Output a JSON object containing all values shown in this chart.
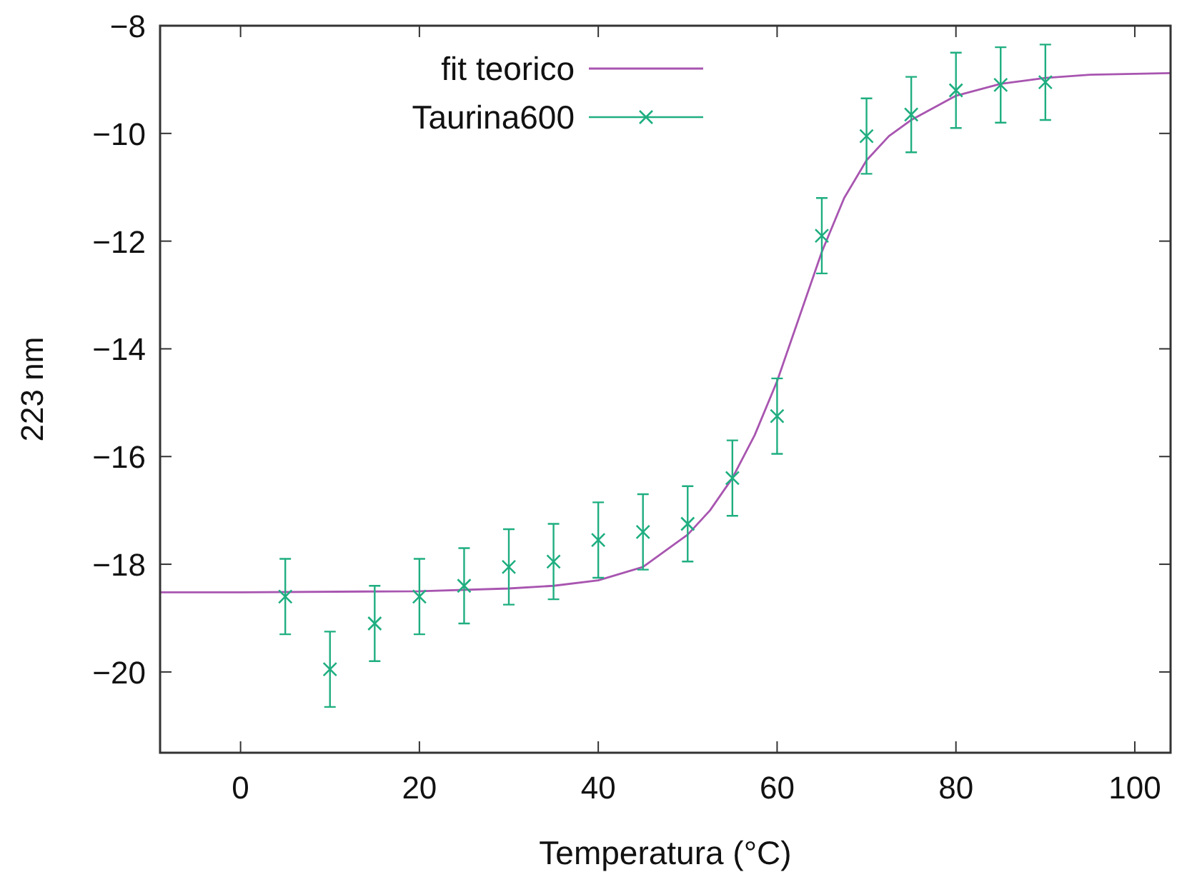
{
  "chart_data": {
    "type": "line",
    "xlabel": "Temperatura (°C)",
    "ylabel": "223 nm",
    "xlim": [
      -9,
      104
    ],
    "ylim": [
      -21.5,
      -8
    ],
    "xticks": [
      0,
      20,
      40,
      60,
      80,
      100
    ],
    "yticks": [
      -20,
      -18,
      -16,
      -14,
      -12,
      -10,
      -8
    ],
    "grid": false,
    "legend": "top left",
    "series": [
      {
        "name": "fit teorico",
        "type": "line",
        "color": "#a855b0",
        "marker": "none",
        "line_style": "solid",
        "x": [
          -9,
          0,
          20,
          30,
          35,
          40,
          45,
          50,
          52.5,
          55,
          57.5,
          60,
          62.5,
          65,
          67.5,
          70,
          72.5,
          75,
          80,
          85,
          90,
          95,
          104
        ],
        "values": [
          -18.52,
          -18.52,
          -18.5,
          -18.45,
          -18.4,
          -18.3,
          -18.05,
          -17.45,
          -17.0,
          -16.4,
          -15.6,
          -14.6,
          -13.4,
          -12.2,
          -11.2,
          -10.5,
          -10.05,
          -9.75,
          -9.3,
          -9.08,
          -8.97,
          -8.91,
          -8.88
        ]
      },
      {
        "name": "Taurina600",
        "type": "scatter",
        "color": "#1fae80",
        "marker": "cross",
        "x": [
          5,
          10,
          15,
          20,
          25,
          30,
          35,
          40,
          45,
          50,
          55,
          60,
          65,
          70,
          75,
          80,
          85,
          90
        ],
        "values": [
          -18.6,
          -19.95,
          -19.1,
          -18.6,
          -18.4,
          -18.05,
          -17.95,
          -17.55,
          -17.4,
          -17.25,
          -16.4,
          -15.25,
          -11.9,
          -10.05,
          -9.65,
          -9.2,
          -9.1,
          -9.05
        ],
        "errors": [
          0.7,
          0.7,
          0.7,
          0.7,
          0.7,
          0.7,
          0.7,
          0.7,
          0.7,
          0.7,
          0.7,
          0.7,
          0.7,
          0.7,
          0.7,
          0.7,
          0.7,
          0.7
        ]
      }
    ]
  }
}
